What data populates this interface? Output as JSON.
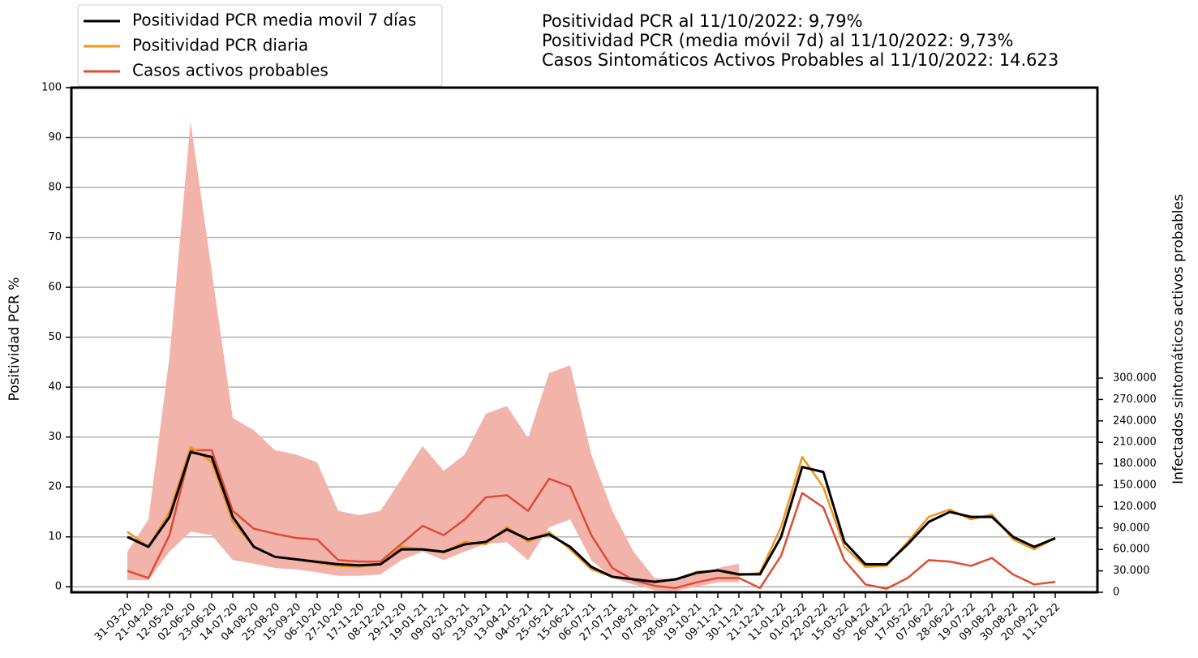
{
  "chart_data": {
    "type": "line",
    "annotations": [
      "Positividad PCR al 11/10/2022: 9,79%",
      "Positividad PCR (media móvil 7d) al 11/10/2022: 9,73%",
      "Casos Sintomáticos Activos Probables al 11/10/2022: 14.623"
    ],
    "ylabel": "Positividad PCR %",
    "y2label": "Infectados sintomáticos activos probables",
    "categories": [
      "31-03-20",
      "21-04-20",
      "12-05-20",
      "02-06-20",
      "23-06-20",
      "14-07-20",
      "04-08-20",
      "25-08-20",
      "15-09-20",
      "06-10-20",
      "27-10-20",
      "17-11-20",
      "08-12-20",
      "29-12-20",
      "19-01-21",
      "09-02-21",
      "02-03-21",
      "23-03-21",
      "13-04-21",
      "04-05-21",
      "25-05-21",
      "15-06-21",
      "06-07-21",
      "27-07-21",
      "17-08-21",
      "07-09-21",
      "28-09-21",
      "19-10-21",
      "09-11-21",
      "30-11-21",
      "21-12-21",
      "11-01-22",
      "01-02-22",
      "22-02-22",
      "15-03-22",
      "05-04-22",
      "26-04-22",
      "17-05-22",
      "07-06-22",
      "28-06-22",
      "19-07-22",
      "09-08-22",
      "30-08-22",
      "20-09-22",
      "11-10-22"
    ],
    "band": {
      "axis": "y2",
      "color": "#f2b3ab",
      "low": [
        17000,
        17000,
        57000,
        85000,
        80000,
        45000,
        40000,
        34000,
        32000,
        28000,
        23000,
        23000,
        25000,
        45000,
        57000,
        45000,
        57000,
        68000,
        70000,
        45000,
        91000,
        102000,
        45000,
        20000,
        11000,
        3000,
        2000,
        8000,
        14000,
        14000,
        null,
        null,
        null,
        null,
        null,
        null,
        null,
        null,
        null,
        null,
        null,
        null,
        null,
        null,
        null
      ],
      "high": [
        57000,
        102000,
        330000,
        659000,
        450000,
        244000,
        227000,
        199000,
        193000,
        182000,
        114000,
        108000,
        114000,
        159000,
        205000,
        170000,
        193000,
        250000,
        261000,
        216000,
        307000,
        318000,
        193000,
        114000,
        57000,
        20000,
        17000,
        25000,
        34000,
        40000,
        null,
        null,
        null,
        null,
        null,
        null,
        null,
        null,
        null,
        null,
        null,
        null,
        null,
        null,
        null
      ]
    },
    "series": [
      {
        "name": "Casos activos probables",
        "color": "#e04b35",
        "axis": "y2",
        "values": [
          30000,
          20000,
          80000,
          199000,
          199000,
          114000,
          89000,
          82000,
          76000,
          74000,
          45000,
          43000,
          43000,
          68000,
          93000,
          80000,
          102000,
          133000,
          136000,
          114000,
          159000,
          148000,
          80000,
          34000,
          17000,
          9000,
          6000,
          14000,
          20000,
          20000,
          6000,
          51000,
          139000,
          119000,
          45000,
          11000,
          5000,
          20000,
          45000,
          43000,
          37000,
          48000,
          25000,
          11000,
          14623
        ]
      },
      {
        "name": "Positividad PCR diaria",
        "color": "#f0961a",
        "values": [
          11,
          8,
          15,
          28,
          25,
          13,
          8,
          6,
          5.5,
          4.8,
          4.2,
          4,
          4.5,
          8,
          7.5,
          7,
          9,
          8.5,
          12,
          9,
          11,
          7.5,
          3.5,
          2,
          1.5,
          1,
          1.5,
          3,
          3.2,
          2.3,
          2.8,
          12,
          26,
          20,
          8,
          4,
          4.2,
          9,
          14,
          15.5,
          13.5,
          14.5,
          9.5,
          7.5,
          9.79
        ]
      },
      {
        "name": "Positividad PCR media movil 7 días",
        "color": "#000000",
        "values": [
          10,
          8,
          14,
          27,
          26,
          14,
          8,
          6,
          5.5,
          5,
          4.5,
          4.3,
          4.5,
          7.5,
          7.5,
          7,
          8.5,
          9,
          11.5,
          9.5,
          10.5,
          8,
          4,
          2,
          1.5,
          1,
          1.5,
          2.8,
          3.3,
          2.5,
          2.5,
          10,
          24,
          23,
          9,
          4.5,
          4.5,
          8.5,
          13,
          15,
          14,
          14,
          10,
          8,
          9.73
        ]
      }
    ],
    "legend_order": [
      2,
      1,
      0
    ],
    "ylim": [
      -1.1,
      100
    ],
    "yticks": [
      0,
      10,
      20,
      30,
      40,
      50,
      60,
      70,
      80,
      90,
      100
    ],
    "y2lim": [
      0,
      706800
    ],
    "y2ticks": [
      {
        "value": 0,
        "label": "0"
      },
      {
        "value": 30000,
        "label": "30.000"
      },
      {
        "value": 60000,
        "label": "60.000"
      },
      {
        "value": 90000,
        "label": "90.000"
      },
      {
        "value": 120000,
        "label": "120.000"
      },
      {
        "value": 150000,
        "label": "150.000"
      },
      {
        "value": 180000,
        "label": "180.000"
      },
      {
        "value": 210000,
        "label": "210.000"
      },
      {
        "value": 240000,
        "label": "240.000"
      },
      {
        "value": 270000,
        "label": "270.000"
      },
      {
        "value": 300000,
        "label": "300.000"
      }
    ],
    "grid": true
  }
}
